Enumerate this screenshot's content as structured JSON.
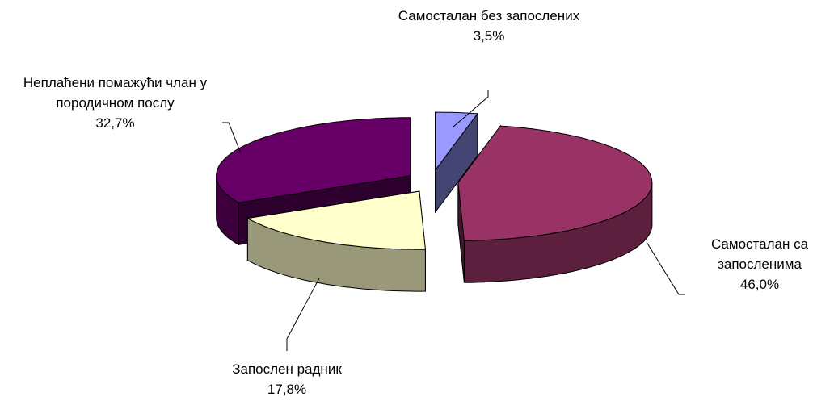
{
  "chart_data": {
    "type": "pie3d",
    "categories": [
      "Самосталан без запослених",
      "Самосталан са запосленима",
      "Запослен радник",
      "Неплаћени помажући члан у породичном послу"
    ],
    "values": [
      3.5,
      46.0,
      17.8,
      32.7
    ],
    "value_labels": [
      "3,5%",
      "46,0%",
      "17,8%",
      "32,7%"
    ],
    "colors": [
      "#9999ff",
      "#993366",
      "#ffffcc",
      "#660066"
    ]
  }
}
